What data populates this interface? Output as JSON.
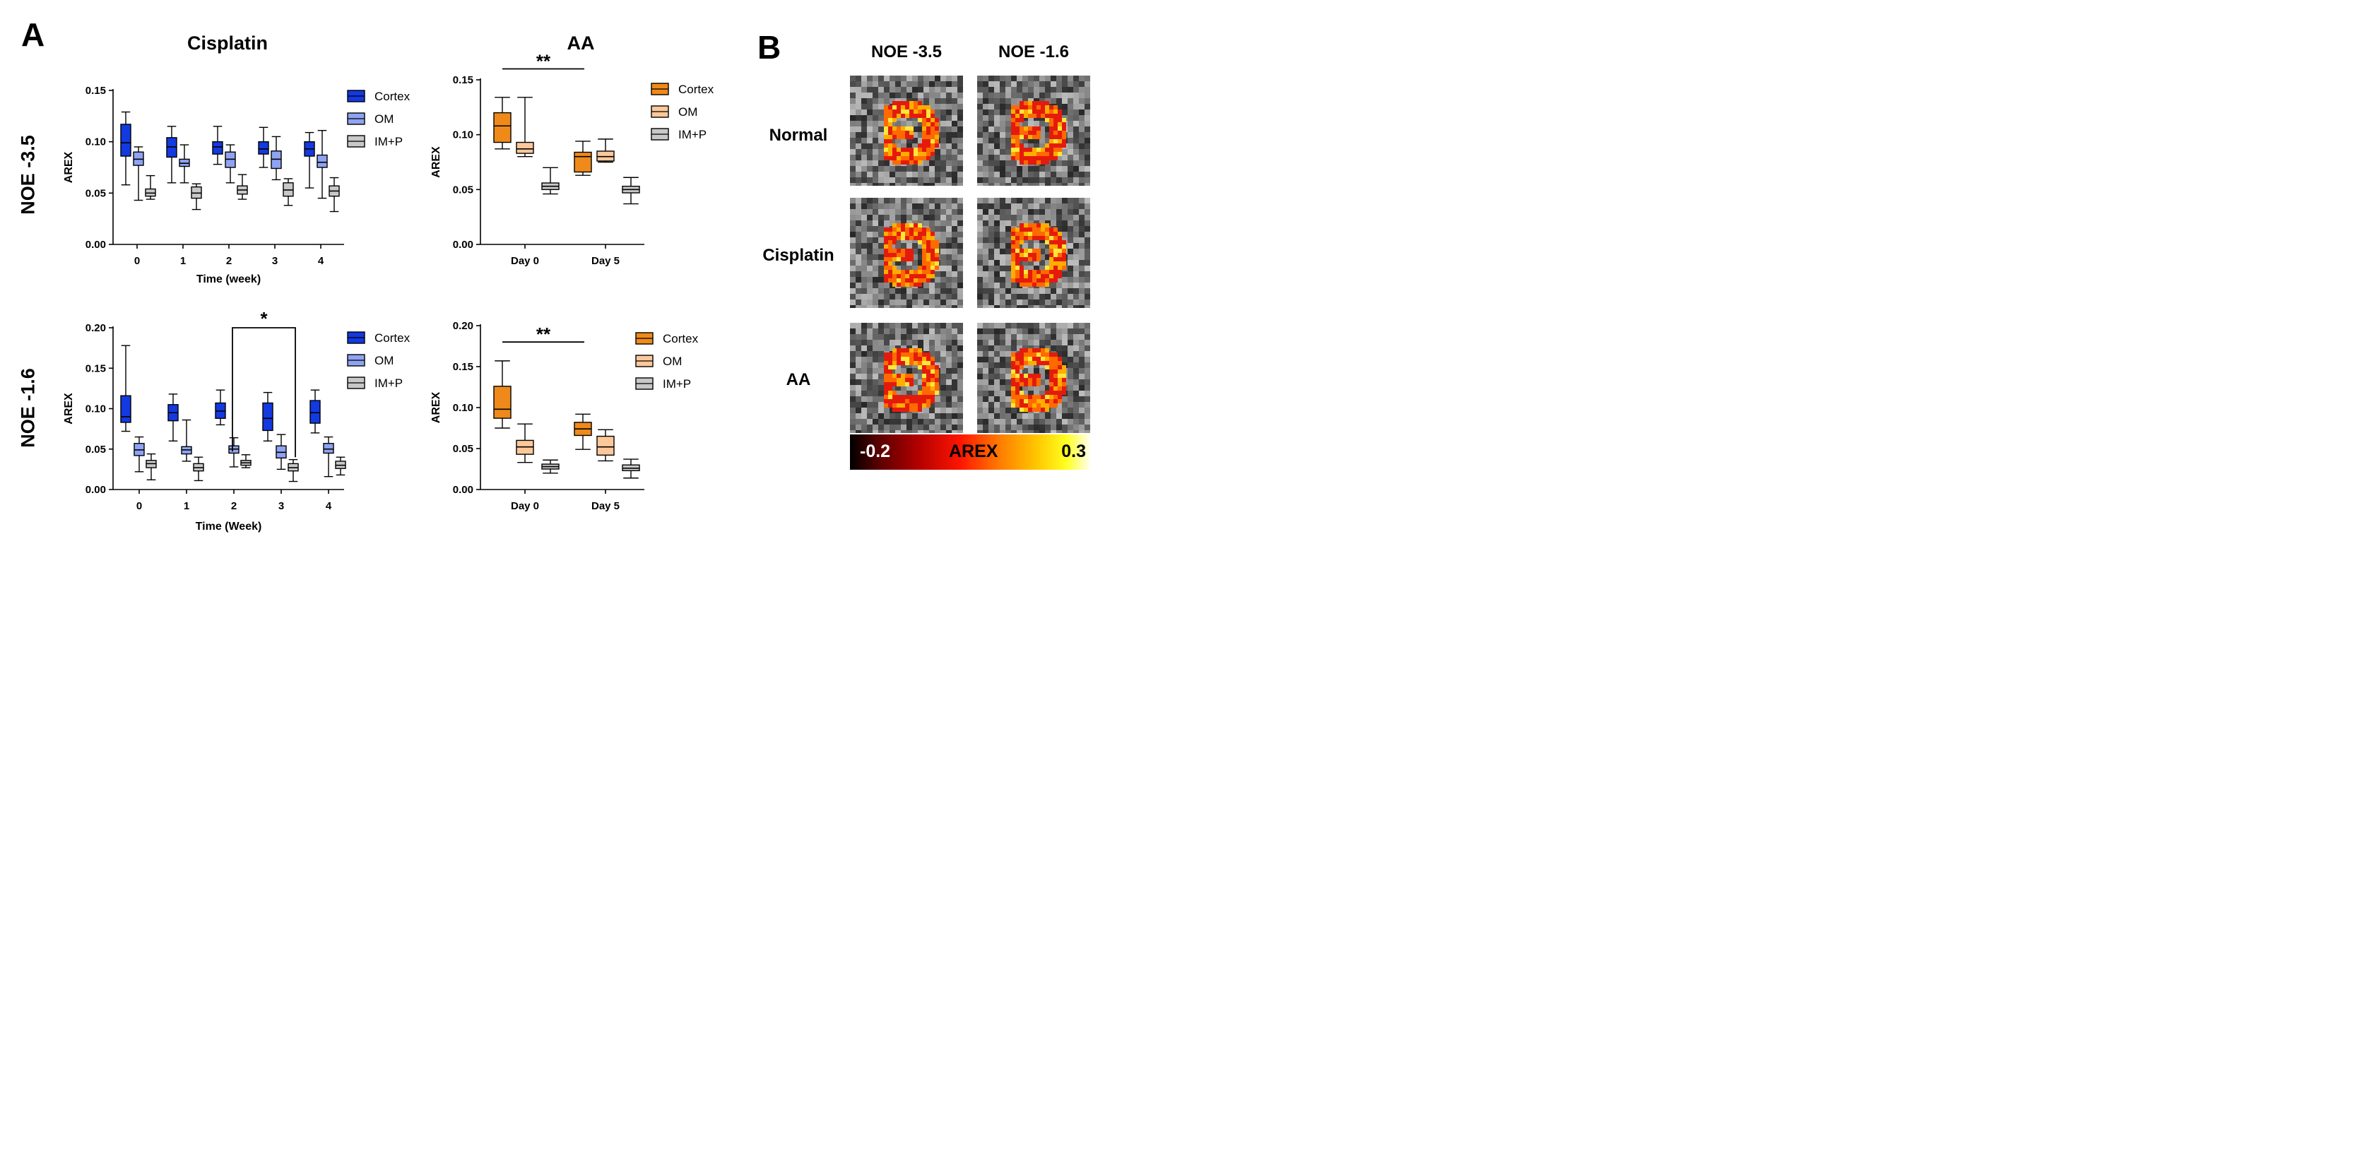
{
  "panel_letters": {
    "a": "A",
    "b": "B"
  },
  "column_titles": {
    "cisplatin": "Cisplatin",
    "aa": "AA"
  },
  "row_titles": {
    "noe35": "NOE -3.5",
    "noe16": "NOE -1.6"
  },
  "colors": {
    "cortex_blue": "#1339e0",
    "om_blue": "#8ea3f2",
    "imp_gray": "#c8c8c8",
    "cortex_orange": "#ef8a1a",
    "om_orange": "#fcc89a",
    "imp_gray2": "#c8c8c8"
  },
  "chart_data": [
    {
      "id": "cis35",
      "type": "box",
      "ylabel": "AREX",
      "xlabel": "Time (week)",
      "ylim": [
        0,
        0.15
      ],
      "yticks": [
        "0.00",
        "0.05",
        "0.10",
        "0.15"
      ],
      "ytick_values": [
        0,
        0.05,
        0.1,
        0.15
      ],
      "categories": [
        "0",
        "1",
        "2",
        "3",
        "4"
      ],
      "legend": [
        "Cortex",
        "OM",
        "IM+P"
      ],
      "series": [
        {
          "name": "Cortex",
          "color": "#1339e0",
          "boxes": [
            {
              "min": 0.058,
              "q1": 0.086,
              "med": 0.099,
              "q3": 0.117,
              "max": 0.129
            },
            {
              "min": 0.06,
              "q1": 0.085,
              "med": 0.095,
              "q3": 0.104,
              "max": 0.115
            },
            {
              "min": 0.078,
              "q1": 0.088,
              "med": 0.095,
              "q3": 0.1,
              "max": 0.115
            },
            {
              "min": 0.075,
              "q1": 0.088,
              "med": 0.093,
              "q3": 0.1,
              "max": 0.114
            },
            {
              "min": 0.055,
              "q1": 0.086,
              "med": 0.093,
              "q3": 0.1,
              "max": 0.109
            }
          ]
        },
        {
          "name": "OM",
          "color": "#8ea3f2",
          "boxes": [
            {
              "min": 0.043,
              "q1": 0.077,
              "med": 0.083,
              "q3": 0.09,
              "max": 0.095
            },
            {
              "min": 0.06,
              "q1": 0.076,
              "med": 0.079,
              "q3": 0.083,
              "max": 0.097
            },
            {
              "min": 0.06,
              "q1": 0.075,
              "med": 0.083,
              "q3": 0.09,
              "max": 0.097
            },
            {
              "min": 0.063,
              "q1": 0.074,
              "med": 0.083,
              "q3": 0.091,
              "max": 0.105
            },
            {
              "min": 0.045,
              "q1": 0.075,
              "med": 0.08,
              "q3": 0.087,
              "max": 0.111
            }
          ]
        },
        {
          "name": "IM+P",
          "color": "#c8c8c8",
          "boxes": [
            {
              "min": 0.044,
              "q1": 0.047,
              "med": 0.05,
              "q3": 0.054,
              "max": 0.067
            },
            {
              "min": 0.034,
              "q1": 0.045,
              "med": 0.05,
              "q3": 0.056,
              "max": 0.059
            },
            {
              "min": 0.044,
              "q1": 0.049,
              "med": 0.053,
              "q3": 0.057,
              "max": 0.068
            },
            {
              "min": 0.038,
              "q1": 0.047,
              "med": 0.053,
              "q3": 0.06,
              "max": 0.064
            },
            {
              "min": 0.032,
              "q1": 0.047,
              "med": 0.052,
              "q3": 0.057,
              "max": 0.065
            }
          ]
        }
      ]
    },
    {
      "id": "aa35",
      "type": "box",
      "ylabel": "AREX",
      "xlabel": "",
      "ylim": [
        0,
        0.15
      ],
      "yticks": [
        "0.00",
        "0.05",
        "0.10",
        "0.15"
      ],
      "ytick_values": [
        0,
        0.05,
        0.1,
        0.15
      ],
      "categories": [
        "Day 0",
        "Day 5"
      ],
      "legend": [
        "Cortex",
        "OM",
        "IM+P"
      ],
      "significance": [
        {
          "label": "**",
          "from": 0,
          "to": 1,
          "y": 0.16,
          "style": "line"
        }
      ],
      "series": [
        {
          "name": "Cortex",
          "color": "#ef8a1a",
          "boxes": [
            {
              "min": 0.087,
              "q1": 0.093,
              "med": 0.108,
              "q3": 0.12,
              "max": 0.134
            },
            {
              "min": 0.063,
              "q1": 0.066,
              "med": 0.08,
              "q3": 0.084,
              "max": 0.094
            }
          ]
        },
        {
          "name": "OM",
          "color": "#fcc89a",
          "boxes": [
            {
              "min": 0.08,
              "q1": 0.083,
              "med": 0.087,
              "q3": 0.093,
              "max": 0.134
            },
            {
              "min": 0.075,
              "q1": 0.076,
              "med": 0.08,
              "q3": 0.085,
              "max": 0.096
            }
          ]
        },
        {
          "name": "IM+P",
          "color": "#c8c8c8",
          "boxes": [
            {
              "min": 0.046,
              "q1": 0.05,
              "med": 0.053,
              "q3": 0.056,
              "max": 0.07
            },
            {
              "min": 0.037,
              "q1": 0.047,
              "med": 0.05,
              "q3": 0.053,
              "max": 0.061
            }
          ]
        }
      ]
    },
    {
      "id": "cis16",
      "type": "box",
      "ylabel": "AREX",
      "xlabel": "Time (Week)",
      "ylim": [
        0,
        0.2
      ],
      "yticks": [
        "0.00",
        "0.05",
        "0.10",
        "0.15",
        "0.20"
      ],
      "ytick_values": [
        0,
        0.05,
        0.1,
        0.15,
        0.2
      ],
      "categories": [
        "0",
        "1",
        "2",
        "3",
        "4"
      ],
      "legend": [
        "Cortex",
        "OM",
        "IM+P"
      ],
      "significance": [
        {
          "label": "*",
          "from_series": 2,
          "from_cat": 2,
          "to_series": 2,
          "to_cat": 3,
          "y": 0.2,
          "style": "bracket"
        }
      ],
      "series": [
        {
          "name": "Cortex",
          "color": "#1339e0",
          "boxes": [
            {
              "min": 0.072,
              "q1": 0.083,
              "med": 0.09,
              "q3": 0.116,
              "max": 0.178
            },
            {
              "min": 0.06,
              "q1": 0.085,
              "med": 0.095,
              "q3": 0.105,
              "max": 0.118
            },
            {
              "min": 0.08,
              "q1": 0.088,
              "med": 0.097,
              "q3": 0.107,
              "max": 0.123
            },
            {
              "min": 0.06,
              "q1": 0.073,
              "med": 0.088,
              "q3": 0.107,
              "max": 0.12
            },
            {
              "min": 0.07,
              "q1": 0.082,
              "med": 0.095,
              "q3": 0.11,
              "max": 0.123
            }
          ]
        },
        {
          "name": "OM",
          "color": "#8ea3f2",
          "boxes": [
            {
              "min": 0.022,
              "q1": 0.042,
              "med": 0.049,
              "q3": 0.057,
              "max": 0.065
            },
            {
              "min": 0.035,
              "q1": 0.044,
              "med": 0.049,
              "q3": 0.053,
              "max": 0.086
            },
            {
              "min": 0.028,
              "q1": 0.045,
              "med": 0.05,
              "q3": 0.054,
              "max": 0.064
            },
            {
              "min": 0.025,
              "q1": 0.039,
              "med": 0.046,
              "q3": 0.054,
              "max": 0.068
            },
            {
              "min": 0.016,
              "q1": 0.045,
              "med": 0.05,
              "q3": 0.057,
              "max": 0.065
            }
          ]
        },
        {
          "name": "IM+P",
          "color": "#c8c8c8",
          "boxes": [
            {
              "min": 0.012,
              "q1": 0.027,
              "med": 0.032,
              "q3": 0.036,
              "max": 0.044
            },
            {
              "min": 0.011,
              "q1": 0.023,
              "med": 0.027,
              "q3": 0.032,
              "max": 0.04
            },
            {
              "min": 0.027,
              "q1": 0.03,
              "med": 0.033,
              "q3": 0.036,
              "max": 0.043
            },
            {
              "min": 0.01,
              "q1": 0.023,
              "med": 0.027,
              "q3": 0.032,
              "max": 0.037
            },
            {
              "min": 0.018,
              "q1": 0.026,
              "med": 0.03,
              "q3": 0.035,
              "max": 0.04
            }
          ]
        }
      ]
    },
    {
      "id": "aa16",
      "type": "box",
      "ylabel": "AREX",
      "xlabel": "",
      "ylim": [
        0,
        0.2
      ],
      "yticks": [
        "0.00",
        "0.05",
        "0.10",
        "0.15",
        "0.20"
      ],
      "ytick_values": [
        0,
        0.05,
        0.1,
        0.15,
        0.2
      ],
      "categories": [
        "Day 0",
        "Day 5"
      ],
      "legend": [
        "Cortex",
        "OM",
        "IM+P"
      ],
      "significance": [
        {
          "label": "**",
          "from": 0,
          "to": 1,
          "y": 0.18,
          "style": "line"
        }
      ],
      "series": [
        {
          "name": "Cortex",
          "color": "#ef8a1a",
          "boxes": [
            {
              "min": 0.075,
              "q1": 0.087,
              "med": 0.098,
              "q3": 0.126,
              "max": 0.157
            },
            {
              "min": 0.049,
              "q1": 0.066,
              "med": 0.074,
              "q3": 0.082,
              "max": 0.092
            }
          ]
        },
        {
          "name": "OM",
          "color": "#fcc89a",
          "boxes": [
            {
              "min": 0.033,
              "q1": 0.043,
              "med": 0.052,
              "q3": 0.06,
              "max": 0.08
            },
            {
              "min": 0.035,
              "q1": 0.042,
              "med": 0.052,
              "q3": 0.065,
              "max": 0.073
            }
          ]
        },
        {
          "name": "IM+P",
          "color": "#c8c8c8",
          "boxes": [
            {
              "min": 0.02,
              "q1": 0.025,
              "med": 0.028,
              "q3": 0.031,
              "max": 0.036
            },
            {
              "min": 0.014,
              "q1": 0.023,
              "med": 0.026,
              "q3": 0.03,
              "max": 0.037
            }
          ]
        }
      ]
    }
  ],
  "mri": {
    "column_titles": [
      "NOE -3.5",
      "NOE -1.6"
    ],
    "row_titles": [
      "Normal",
      "Cisplatin",
      "AA"
    ],
    "colorbar": {
      "min_label": "-0.2",
      "title": "AREX",
      "max_label": "0.3"
    }
  }
}
